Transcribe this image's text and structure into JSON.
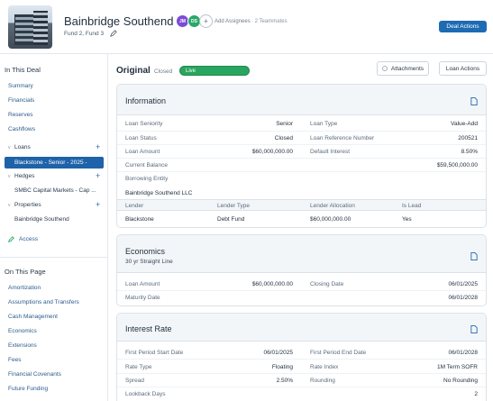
{
  "header": {
    "title": "Bainbridge Southend",
    "funds": "Fund 2, Fund 3",
    "assignees": [
      {
        "initials": "JM",
        "color": "#7d4bd8"
      },
      {
        "initials": "DS",
        "color": "#2aa86a"
      }
    ],
    "add_assignees": "Add Assignees",
    "teammates": "· 2 Teammates",
    "deal_actions": "Deal Actions"
  },
  "sidebar": {
    "in_this_deal": "In This Deal",
    "items": [
      "Summary",
      "Financials",
      "Reserves",
      "Cashflows"
    ],
    "loans": {
      "label": "Loans",
      "active_item": "Blackstone - Senior - 2025 -"
    },
    "hedges": {
      "label": "Hedges",
      "item": "SMBC Capital Markets - Cap ..."
    },
    "properties": {
      "label": "Properties",
      "item": "Bainbridge Southend"
    },
    "access": "Access",
    "on_this_page": "On This Page",
    "page_links": [
      "Amortization",
      "Assumptions and Transfers",
      "Cash Management",
      "Economics",
      "Extensions",
      "Fees",
      "Financial Covenants",
      "Future Funding"
    ]
  },
  "main": {
    "title": "Original",
    "status": "Closed",
    "toggle_label": "Live",
    "attachments": "Attachments",
    "loan_actions": "Loan Actions"
  },
  "information": {
    "title": "Information",
    "rows": [
      {
        "l1": "Loan Seniority",
        "v1": "Senior",
        "l2": "Loan Type",
        "v2": "Value-Add"
      },
      {
        "l1": "Loan Status",
        "v1": "Closed",
        "l2": "Loan Reference Number",
        "v2": "200521"
      },
      {
        "l1": "Loan Amount",
        "v1": "$60,000,000.00",
        "l2": "Default Interest",
        "v2": "8.50%"
      },
      {
        "l1": "Current Balance",
        "v1": "",
        "l2": "",
        "v2": "$59,500,000.00"
      }
    ],
    "borrowing_entity_label": "Borrowing Entity",
    "borrowing_entity": "Bainbridge Southend LLC",
    "table_headers": [
      "Lender",
      "Lender Type",
      "Lender Allocation",
      "Is Lead"
    ],
    "table_row": [
      "Blackstone",
      "Debt Fund",
      "$60,000,000.00",
      "Yes"
    ]
  },
  "economics": {
    "title": "Economics",
    "subtitle": "30 yr Straight Line",
    "rows": [
      {
        "l1": "Loan Amount",
        "v1": "$60,000,000.00",
        "l2": "Closing Date",
        "v2": "06/01/2025"
      },
      {
        "l1": "Maturity Date",
        "v1": "",
        "l2": "",
        "v2": "06/01/2028"
      }
    ]
  },
  "interest_rate": {
    "title": "Interest Rate",
    "rows": [
      {
        "l1": "First Period Start Date",
        "v1": "06/01/2025",
        "l2": "First Period End Date",
        "v2": "06/01/2028"
      },
      {
        "l1": "Rate Type",
        "v1": "Floating",
        "l2": "Rate Index",
        "v2": "1M Term SOFR"
      },
      {
        "l1": "Spread",
        "v1": "2.50%",
        "l2": "Rounding",
        "v2": "No Rounding"
      },
      {
        "l1": "Lookback Days",
        "v1": "",
        "l2": "",
        "v2": "2"
      }
    ]
  }
}
